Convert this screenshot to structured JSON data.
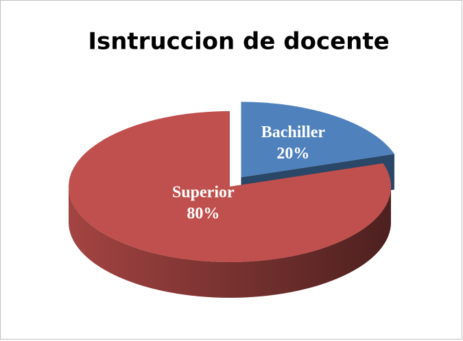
{
  "chart_data": {
    "type": "pie",
    "title": "Isntruccion de docente",
    "categories": [
      "Bachiller",
      "Superior"
    ],
    "values": [
      20,
      80
    ],
    "value_labels": [
      "20%",
      "80%"
    ],
    "colors": [
      "#4f81bd",
      "#c0504d"
    ]
  }
}
